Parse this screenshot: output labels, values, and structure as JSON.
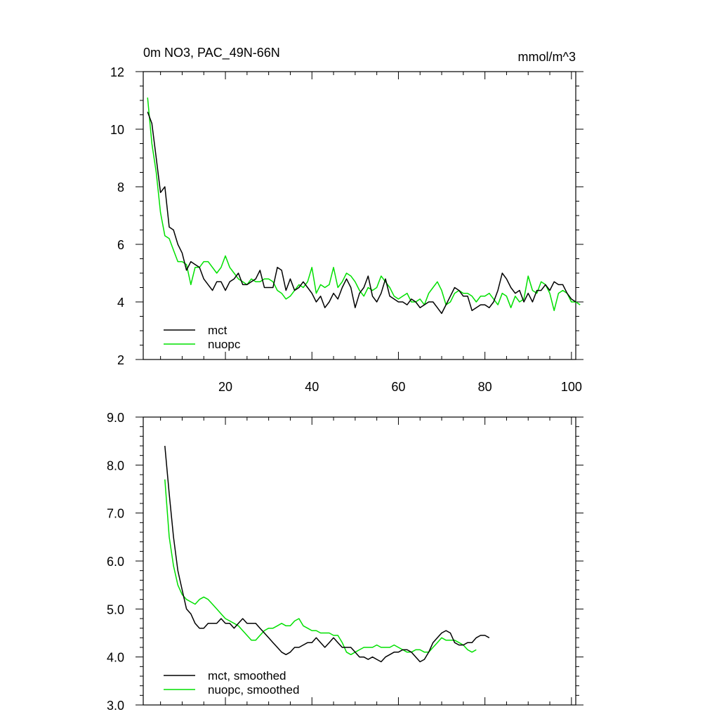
{
  "chart_data": [
    {
      "type": "line",
      "title": "0m NO3, PAC_49N-66N",
      "units": "mmol/m^3",
      "xlim": [
        1,
        101
      ],
      "ylim": [
        2,
        12
      ],
      "x_ticks": [
        20,
        40,
        60,
        80,
        100
      ],
      "x_tick_labels": [
        "20",
        "40",
        "60",
        "80",
        "100"
      ],
      "y_ticks": [
        2,
        4,
        6,
        8,
        10,
        12
      ],
      "y_tick_labels": [
        "2",
        "4",
        "6",
        "8",
        "10",
        "12"
      ],
      "x_start": 2,
      "legend": [
        "mct",
        "nuopc"
      ],
      "series": [
        {
          "name": "mct",
          "color": "#000000",
          "values": [
            10.6,
            10.2,
            9.0,
            7.8,
            8.0,
            6.6,
            6.5,
            6.0,
            5.7,
            5.1,
            5.4,
            5.3,
            5.2,
            4.8,
            4.6,
            4.4,
            4.7,
            4.7,
            4.4,
            4.7,
            4.8,
            5.0,
            4.6,
            4.6,
            4.7,
            4.8,
            5.1,
            4.5,
            4.5,
            4.5,
            5.2,
            5.1,
            4.4,
            4.8,
            4.4,
            4.5,
            4.7,
            4.5,
            4.3,
            4.0,
            4.2,
            3.8,
            4.0,
            4.3,
            4.1,
            4.5,
            4.8,
            4.5,
            3.8,
            4.3,
            4.5,
            4.9,
            4.2,
            4.0,
            4.3,
            4.8,
            4.2,
            4.1,
            4.0,
            4.0,
            3.9,
            4.1,
            4.0,
            3.8,
            3.9,
            4.0,
            4.0,
            3.8,
            3.6,
            3.9,
            4.2,
            4.5,
            4.4,
            4.2,
            4.2,
            3.7,
            3.8,
            3.9,
            3.9,
            3.8,
            4.0,
            4.4,
            5.0,
            4.8,
            4.5,
            4.3,
            4.4,
            4.0,
            4.3,
            4.0,
            4.4,
            4.4,
            4.6,
            4.4,
            4.7,
            4.6,
            4.6,
            4.3,
            4.1,
            4.0
          ],
          "smoothed_x_start": 6,
          "smoothed": [
            8.4,
            7.4,
            6.5,
            5.8,
            5.4,
            5.0,
            4.9,
            4.7,
            4.6,
            4.6,
            4.7,
            4.7,
            4.7,
            4.8,
            4.7,
            4.7,
            4.6,
            4.7,
            4.8,
            4.7,
            4.7,
            4.7,
            4.6,
            4.5,
            4.4,
            4.3,
            4.2,
            4.1,
            4.05,
            4.1,
            4.2,
            4.2,
            4.25,
            4.3,
            4.3,
            4.4,
            4.3,
            4.2,
            4.3,
            4.4,
            4.3,
            4.2,
            4.2,
            4.2,
            4.1,
            4.0,
            4.0,
            3.95,
            4.0,
            3.95,
            3.9,
            4.0,
            4.05,
            4.1,
            4.1,
            4.15,
            4.15,
            4.1,
            4.0,
            3.9,
            3.95,
            4.1,
            4.3,
            4.4,
            4.5,
            4.55,
            4.5,
            4.3,
            4.25,
            4.25,
            4.3,
            4.3,
            4.4,
            4.45,
            4.45,
            4.4
          ]
        },
        {
          "name": "nuopc",
          "color": "#00e000",
          "values": [
            11.1,
            9.5,
            8.5,
            7.1,
            6.3,
            6.2,
            5.8,
            5.4,
            5.4,
            5.3,
            4.6,
            5.2,
            5.2,
            5.4,
            5.4,
            5.2,
            5.0,
            5.2,
            5.6,
            5.2,
            5.0,
            4.8,
            4.7,
            4.6,
            4.8,
            4.7,
            4.7,
            4.8,
            4.8,
            4.7,
            4.4,
            4.3,
            4.1,
            4.2,
            4.4,
            4.6,
            4.5,
            4.7,
            5.2,
            4.3,
            4.6,
            4.5,
            4.6,
            5.2,
            4.5,
            4.7,
            5.0,
            4.9,
            4.7,
            4.4,
            4.2,
            4.5,
            4.4,
            4.5,
            4.9,
            4.7,
            4.5,
            4.2,
            4.1,
            4.2,
            4.3,
            4.0,
            4.0,
            4.1,
            3.9,
            4.3,
            4.5,
            4.7,
            4.4,
            3.9,
            4.0,
            4.3,
            4.4,
            4.3,
            4.3,
            4.2,
            4.0,
            4.2,
            4.2,
            4.3,
            4.1,
            3.9,
            4.3,
            4.2,
            3.8,
            4.2,
            4.0,
            4.1,
            4.9,
            4.4,
            4.3,
            4.7,
            4.6,
            4.3,
            3.7,
            4.3,
            4.4,
            4.3,
            4.0,
            4.0,
            3.9
          ],
          "smoothed_x_start": 6,
          "smoothed": [
            7.7,
            6.5,
            5.9,
            5.5,
            5.3,
            5.2,
            5.15,
            5.1,
            5.2,
            5.25,
            5.2,
            5.1,
            5.0,
            4.9,
            4.8,
            4.75,
            4.7,
            4.65,
            4.55,
            4.45,
            4.35,
            4.35,
            4.45,
            4.55,
            4.6,
            4.6,
            4.65,
            4.7,
            4.65,
            4.65,
            4.75,
            4.8,
            4.65,
            4.6,
            4.55,
            4.55,
            4.5,
            4.5,
            4.5,
            4.45,
            4.45,
            4.3,
            4.1,
            4.05,
            4.1,
            4.15,
            4.2,
            4.2,
            4.2,
            4.25,
            4.2,
            4.2,
            4.2,
            4.25,
            4.2,
            4.15,
            4.1,
            4.1,
            4.15,
            4.15,
            4.1,
            4.1,
            4.2,
            4.3,
            4.4,
            4.35,
            4.35,
            4.35,
            4.3,
            4.25,
            4.15,
            4.1,
            4.15
          ]
        }
      ]
    },
    {
      "type": "line",
      "title": "",
      "xlim": [
        1,
        101
      ],
      "ylim": [
        3.0,
        9.0
      ],
      "x_ticks": [
        20,
        40,
        60,
        80,
        100
      ],
      "y_ticks": [
        3.0,
        4.0,
        5.0,
        6.0,
        7.0,
        8.0,
        9.0
      ],
      "y_tick_labels": [
        "3.0",
        "4.0",
        "5.0",
        "6.0",
        "7.0",
        "8.0",
        "9.0"
      ],
      "legend": [
        "mct, smoothed",
        "nuopc, smoothed"
      ]
    }
  ]
}
